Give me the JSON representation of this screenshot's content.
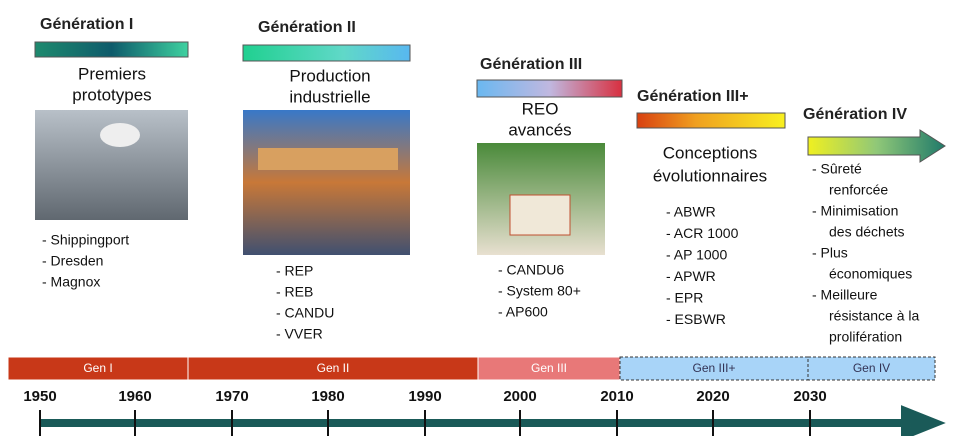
{
  "generations": [
    {
      "title": "Génération I",
      "subtitle": [
        "Premiers",
        "prototypes"
      ],
      "items": [
        [
          "- Shippingport"
        ],
        [
          "- Dresden"
        ],
        [
          "- Magnox"
        ]
      ]
    },
    {
      "title": "Génération II",
      "subtitle": [
        "Production",
        "industrielle"
      ],
      "items": [
        [
          "- REP"
        ],
        [
          "- REB"
        ],
        [
          "- CANDU"
        ],
        [
          "- VVER"
        ]
      ]
    },
    {
      "title": "Génération III",
      "subtitle": [
        "REO",
        "avancés"
      ],
      "items": [
        [
          "- CANDU6"
        ],
        [
          "- System 80+"
        ],
        [
          "- AP600"
        ]
      ]
    },
    {
      "title": "Génération III+",
      "subtitle": [
        "Conceptions",
        "évolutionnaires"
      ],
      "items": [
        [
          "- ABWR"
        ],
        [
          "- ACR 1000"
        ],
        [
          "- AP 1000"
        ],
        [
          "- APWR"
        ],
        [
          "- EPR"
        ],
        [
          "- ESBWR"
        ]
      ]
    },
    {
      "title": "Génération IV",
      "subtitle": [],
      "items": [
        [
          "- Sûreté",
          "renforcée"
        ],
        [
          "- Minimisation",
          "des déchets"
        ],
        [
          "- Plus",
          "économiques"
        ],
        [
          "- Meilleure",
          "résistance à la",
          "prolifération"
        ]
      ]
    }
  ],
  "timeline": {
    "segments": [
      "Gen I",
      "Gen II",
      "Gen III",
      "Gen III+",
      "Gen IV"
    ],
    "years": [
      "1950",
      "1960",
      "1970",
      "1980",
      "1990",
      "2000",
      "2010",
      "2020",
      "2030"
    ]
  }
}
